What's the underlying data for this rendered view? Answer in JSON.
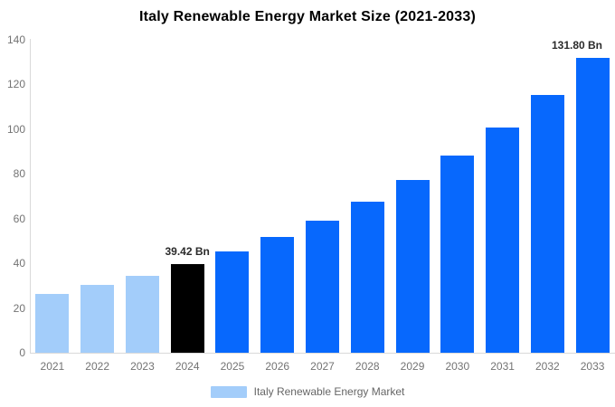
{
  "title": "Italy Renewable Energy Market Size (2021-2033)",
  "legend": {
    "label": "Italy Renewable Energy Market",
    "swatch_color": "#A3CDFA"
  },
  "colors": {
    "historical_bar": "#A3CDFA",
    "base_year_bar": "#000000",
    "forecast_bar": "#0768FD",
    "axis_line": "#D9D9D9",
    "axis_text": "#737373",
    "annotation_text": "#2B2B2B"
  },
  "chart_data": {
    "type": "bar",
    "title": "Italy Renewable Energy Market Size (2021-2033)",
    "categories": [
      "2021",
      "2022",
      "2023",
      "2024",
      "2025",
      "2026",
      "2027",
      "2028",
      "2029",
      "2030",
      "2031",
      "2032",
      "2033"
    ],
    "values": [
      26.36,
      30.15,
      34.47,
      39.42,
      45.08,
      51.55,
      58.95,
      67.41,
      77.08,
      88.14,
      100.79,
      115.25,
      131.8
    ],
    "bar_colors": [
      "#A3CDFA",
      "#A3CDFA",
      "#A3CDFA",
      "#000000",
      "#0768FD",
      "#0768FD",
      "#0768FD",
      "#0768FD",
      "#0768FD",
      "#0768FD",
      "#0768FD",
      "#0768FD",
      "#0768FD"
    ],
    "bar_value_labels": [
      "",
      "",
      "",
      "39.42 Bn",
      "",
      "",
      "",
      "",
      "",
      "",
      "",
      "",
      "131.80 Bn"
    ],
    "xlabel": "",
    "ylabel": "",
    "ylim": [
      0,
      140
    ],
    "yticks": [
      0,
      20,
      40,
      60,
      80,
      100,
      120,
      140
    ],
    "grid": "off",
    "legend_position": "bottom",
    "legend_entries": [
      "Italy Renewable Energy Market"
    ],
    "unit": "Bn"
  }
}
